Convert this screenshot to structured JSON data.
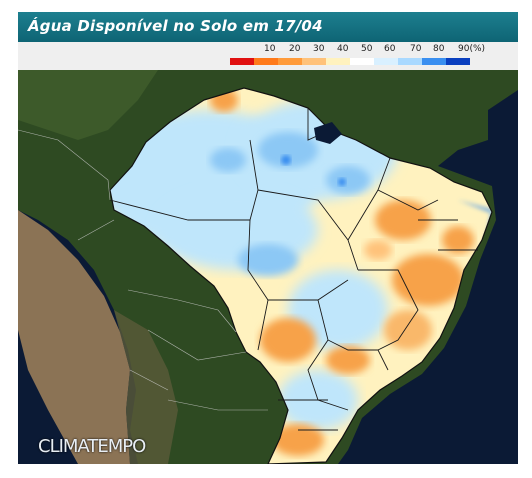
{
  "title": "Água Disponível no Solo em 17/04",
  "legend": {
    "labels": [
      "10",
      "20",
      "30",
      "40",
      "50",
      "60",
      "70",
      "80",
      "90(%)"
    ],
    "colors": [
      "#e01010",
      "#ff7a1a",
      "#ff9b3a",
      "#ffc27a",
      "#fff2bf",
      "#ffffff",
      "#d9f0ff",
      "#a9d9ff",
      "#3a8ff0",
      "#0a3fbf"
    ]
  },
  "watermark": "CLIMATEMPO",
  "colors": {
    "header": "#127383",
    "ocean": "#0b1a35",
    "land_vegetation": "#2e4a22",
    "land_arid": "#8b7355",
    "very_wet": "#3a8ff0",
    "wet": "#bfe6fb",
    "medium": "#fff2bf",
    "dry": "#f7a24a"
  }
}
